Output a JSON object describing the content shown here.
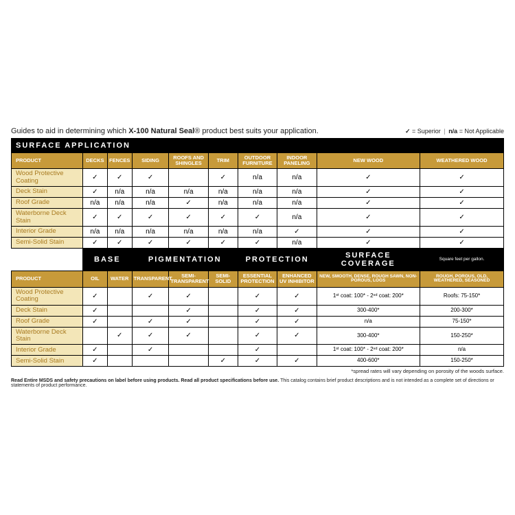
{
  "intro": {
    "prefix": "Guides to aid in determining which ",
    "brand": "X-100 Natural Seal",
    "reg": "®",
    "suffix": " product best suits your application."
  },
  "legend": {
    "check": "✓",
    "check_label": " = Superior",
    "na": "n/a",
    "na_label": " = Not Applicable"
  },
  "table1": {
    "title": "SURFACE APPLICATION",
    "headers": [
      "PRODUCT",
      "DECKS",
      "FENCES",
      "SIDING",
      "ROOFS AND SHINGLES",
      "TRIM",
      "OUTDOOR FURNITURE",
      "INDOOR PANELING",
      "NEW WOOD",
      "WEATHERED WOOD"
    ],
    "rows": [
      {
        "name": "Wood Protective Coating",
        "vals": [
          "✓",
          "✓",
          "✓",
          "",
          "✓",
          "n/a",
          "n/a",
          "✓",
          "✓"
        ]
      },
      {
        "name": "Deck Stain",
        "vals": [
          "✓",
          "n/a",
          "n/a",
          "n/a",
          "n/a",
          "n/a",
          "n/a",
          "✓",
          "✓"
        ]
      },
      {
        "name": "Roof Grade",
        "vals": [
          "n/a",
          "n/a",
          "n/a",
          "✓",
          "n/a",
          "n/a",
          "n/a",
          "✓",
          "✓"
        ]
      },
      {
        "name": "Waterborne Deck Stain",
        "vals": [
          "✓",
          "✓",
          "✓",
          "✓",
          "✓",
          "✓",
          "n/a",
          "✓",
          "✓"
        ]
      },
      {
        "name": "Interior Grade",
        "vals": [
          "n/a",
          "n/a",
          "n/a",
          "n/a",
          "n/a",
          "n/a",
          "✓",
          "✓",
          "✓"
        ]
      },
      {
        "name": "Semi-Solid Stain",
        "vals": [
          "✓",
          "✓",
          "✓",
          "✓",
          "✓",
          "✓",
          "n/a",
          "✓",
          "✓"
        ]
      }
    ]
  },
  "table2": {
    "groups": [
      "BASE",
      "PIGMENTATION",
      "PROTECTION",
      "SURFACE COVERAGE"
    ],
    "sqft": "Square feet per gallon.",
    "headers": [
      "PRODUCT",
      "OIL",
      "WATER",
      "TRANSPARENT",
      "SEMI-TRANSPARENT",
      "SEMI-SOLID",
      "ESSENTIAL PROTECTION",
      "ENHANCED UV INHIBITOR",
      "NEW, SMOOTH, DENSE, ROUGH SAWN, NON-POROUS, LOGS",
      "ROUGH, POROUS, OLD, WEATHERED, SEASONED"
    ],
    "rows": [
      {
        "name": "Wood Protective Coating",
        "vals": [
          "✓",
          "",
          "✓",
          "✓",
          "",
          "✓",
          "✓"
        ],
        "cov": [
          "1ˢᵗ coat: 100* - 2ⁿᵈ coat: 200*",
          "Roofs: 75-150*"
        ]
      },
      {
        "name": "Deck Stain",
        "vals": [
          "✓",
          "",
          "",
          "✓",
          "",
          "✓",
          "✓"
        ],
        "cov": [
          "300-400*",
          "200-300*"
        ]
      },
      {
        "name": "Roof Grade",
        "vals": [
          "✓",
          "",
          "✓",
          "✓",
          "",
          "✓",
          "✓"
        ],
        "cov": [
          "n/a",
          "75-150*"
        ]
      },
      {
        "name": "Waterborne Deck Stain",
        "vals": [
          "",
          "✓",
          "✓",
          "✓",
          "",
          "✓",
          "✓"
        ],
        "cov": [
          "300-400*",
          "150-250*"
        ]
      },
      {
        "name": "Interior Grade",
        "vals": [
          "✓",
          "",
          "✓",
          "",
          "",
          "✓",
          ""
        ],
        "cov": [
          "1ˢᵗ coat: 100* - 2ⁿᵈ coat: 200*",
          "n/a"
        ]
      },
      {
        "name": "Semi-Solid Stain",
        "vals": [
          "✓",
          "",
          "",
          "",
          "✓",
          "✓",
          "✓"
        ],
        "cov": [
          "400-600*",
          "150-250*"
        ]
      }
    ]
  },
  "footnote1": "*spread rates will vary depending on porosity of the woods surface.",
  "footnote2a": "Read Entire MSDS and safety precautions on label before using products. Read all product specifications before use. ",
  "footnote2b": "This catalog contains brief product descriptions and is not intended as a complete set of directions or statements of product performance.",
  "colors": {
    "gold": "#c79a3a",
    "cream": "#f3e6b8",
    "gold_text": "#a87a1f",
    "black": "#000000",
    "white": "#ffffff"
  }
}
